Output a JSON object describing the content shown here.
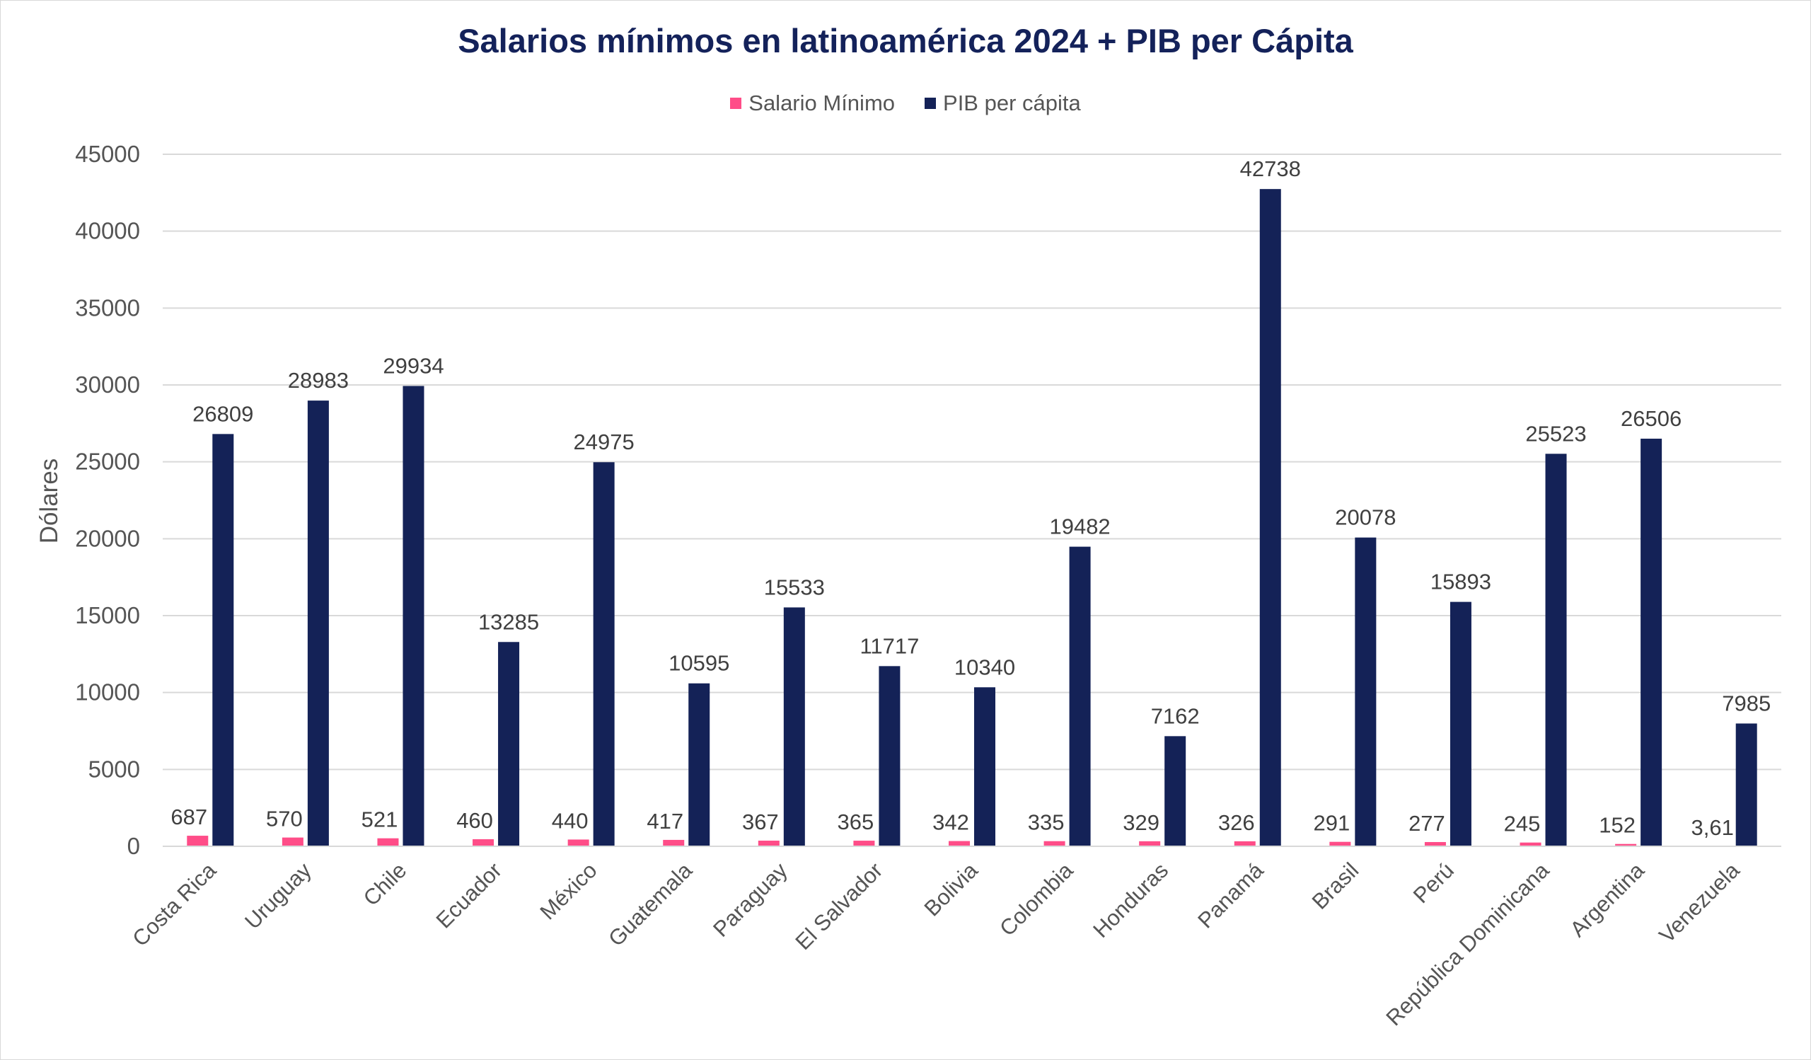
{
  "colors": {
    "minimum_wage": "#ff4d88",
    "gdp_per_capita": "#142257",
    "title": "#14225a",
    "grid": "#d9d9d9",
    "text": "#555555",
    "label": "#404040"
  },
  "chart_data": {
    "type": "bar",
    "title": "Salarios mínimos en latinoamérica 2024 + PIB per Cápita",
    "xlabel": "",
    "ylabel": "Dólares",
    "ylim": [
      0,
      45000
    ],
    "yticks": [
      0,
      5000,
      10000,
      15000,
      20000,
      25000,
      30000,
      35000,
      40000,
      45000
    ],
    "grid": true,
    "legend_position": "top",
    "categories": [
      "Costa Rica",
      "Uruguay",
      "Chile",
      "Ecuador",
      "México",
      "Guatemala",
      "Paraguay",
      "El Salvador",
      "Bolivia",
      "Colombia",
      "Honduras",
      "Panamá",
      "Brasil",
      "Perú",
      "República Dominicana",
      "Argentina",
      "Venezuela"
    ],
    "series": [
      {
        "name": "Salario Mínimo",
        "values": [
          687,
          570,
          521,
          460,
          440,
          417,
          367,
          365,
          342,
          335,
          329,
          326,
          291,
          277,
          245,
          152,
          3.61
        ],
        "labels": [
          "687",
          "570",
          "521",
          "460",
          "440",
          "417",
          "367",
          "365",
          "342",
          "335",
          "329",
          "326",
          "291",
          "277",
          "245",
          "152",
          "3,61"
        ]
      },
      {
        "name": "PIB per cápita",
        "values": [
          26809,
          28983,
          29934,
          13285,
          24975,
          10595,
          15533,
          11717,
          10340,
          19482,
          7162,
          42738,
          20078,
          15893,
          25523,
          26506,
          7985
        ],
        "labels": [
          "26809",
          "28983",
          "29934",
          "13285",
          "24975",
          "10595",
          "15533",
          "11717",
          "10340",
          "19482",
          "7162",
          "42738",
          "20078",
          "15893",
          "25523",
          "26506",
          "7985"
        ]
      }
    ]
  }
}
